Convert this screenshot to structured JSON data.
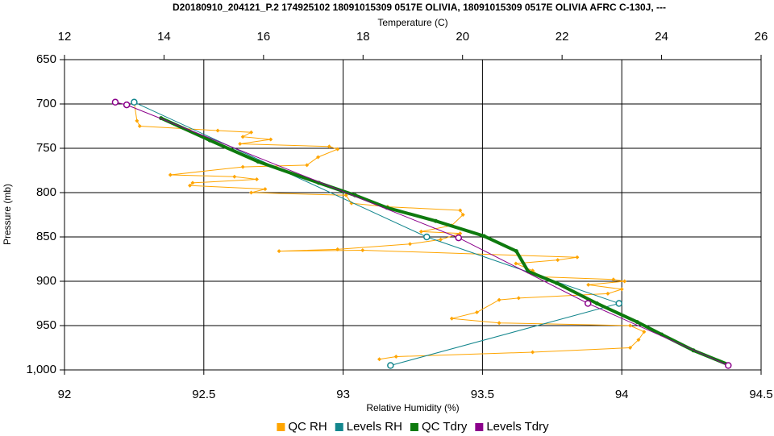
{
  "chart_data": {
    "type": "line",
    "title": "D20180910_204121_P.2 174925102 18091015309 0517E OLIVIA, 18091015309 0517E OLIVIA AFRC C-130J, ---",
    "x_label": "Relative Humidity (%)",
    "x2_label": "Temperature (C)",
    "y_label": "Pressure (mb)",
    "xlim": [
      92,
      94.5
    ],
    "xticks": [
      92,
      92.5,
      93,
      93.5,
      94,
      94.5
    ],
    "x2lim": [
      12,
      26
    ],
    "x2ticks": [
      12,
      14,
      16,
      18,
      20,
      22,
      24,
      26
    ],
    "ylim": [
      650,
      1000
    ],
    "y_inverted": true,
    "yticks": [
      650,
      700,
      750,
      800,
      850,
      900,
      950,
      {
        "value": 1000,
        "label": "1,000"
      }
    ],
    "grid": true,
    "legend": "bottom",
    "series": [
      {
        "name": "QC RH",
        "color": "#ffa500",
        "axis": "x",
        "marker": "diamond",
        "x": [
          92.25,
          92.26,
          92.27,
          92.55,
          92.67,
          92.64,
          92.74,
          92.63,
          92.95,
          92.98,
          92.91,
          92.87,
          92.64,
          92.38,
          92.61,
          92.69,
          92.46,
          92.45,
          92.72,
          92.67,
          93.01,
          93.03,
          93.16,
          93.42,
          93.43,
          93.39,
          93.28,
          93.42,
          93.35,
          93.24,
          92.98,
          92.77,
          93.07,
          93.84,
          93.77,
          93.62,
          93.68,
          93.71,
          93.97,
          94.01,
          93.88,
          94.0,
          93.95,
          93.63,
          93.56,
          93.48,
          93.39,
          93.56,
          94.03,
          94.08,
          94.06,
          94.03,
          93.68,
          93.19,
          93.13
        ],
        "y": [
          698,
          719,
          725,
          730,
          732,
          737,
          740,
          745,
          748,
          751,
          760,
          769,
          771,
          780,
          782,
          785,
          789,
          792,
          796,
          800,
          803,
          812,
          816,
          820,
          825,
          837,
          844,
          846,
          853,
          858,
          864,
          866,
          865,
          873,
          876,
          880,
          888,
          895,
          898,
          900,
          904,
          909,
          914,
          919,
          921,
          935,
          942,
          947,
          950,
          957,
          966,
          975,
          980,
          985,
          988
        ]
      },
      {
        "name": "Levels RH",
        "color": "#13868d",
        "axis": "x",
        "marker": "circle",
        "x": [
          92.25,
          93.3,
          93.99,
          93.17
        ],
        "y": [
          698,
          850,
          925,
          995
        ]
      },
      {
        "name": "QC Tdry",
        "color": "#0e7a0e",
        "axis": "x2",
        "marker": "dot",
        "x": [
          13.94,
          14.92,
          15.89,
          17.11,
          17.84,
          18.48,
          19.46,
          20.43,
          21.08,
          21.32,
          21.89,
          22.7,
          23.51,
          24.0,
          24.64,
          25.34
        ],
        "y": [
          716,
          741,
          765,
          789,
          803,
          817,
          832,
          849,
          866,
          889,
          902,
          925,
          946,
          960,
          978,
          994
        ]
      },
      {
        "name": "Levels Tdry",
        "color": "#8b008b",
        "axis": "x2",
        "marker": "circle",
        "x": [
          13.02,
          13.25,
          19.92,
          22.52,
          25.34
        ],
        "y": [
          698,
          701,
          851,
          925,
          995
        ]
      }
    ]
  }
}
